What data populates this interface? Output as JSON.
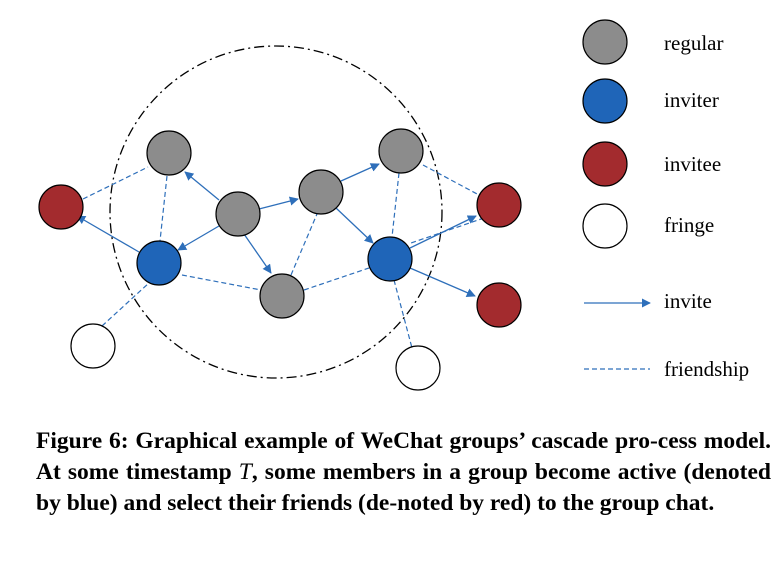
{
  "legend": {
    "regular": "regular",
    "inviter": "inviter",
    "invitee": "invitee",
    "fringe": "fringe",
    "invite": "invite",
    "friendship": "friendship"
  },
  "colors": {
    "regular": "#8c8c8c",
    "inviter": "#1f65b8",
    "invitee": "#a32b2e",
    "fringe": "#ffffff",
    "edge": "#2e6fba"
  },
  "caption": {
    "lead": "Figure 6: Graphical example of WeChat groups’ cascade pro-cess model. At some timestamp",
    "var": "T",
    "rest": ", some members in a group become active (denoted by blue) and select their friends (de-noted by red) to the group chat."
  }
}
